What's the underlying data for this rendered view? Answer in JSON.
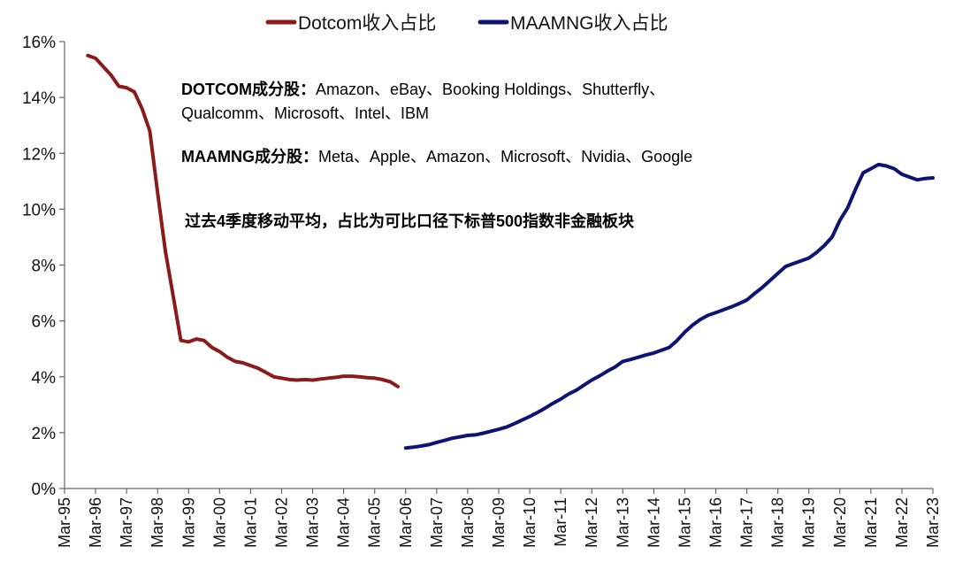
{
  "chart_data": {
    "type": "line",
    "ylim": [
      0,
      16
    ],
    "y_ticks": [
      "0%",
      "2%",
      "4%",
      "6%",
      "8%",
      "10%",
      "12%",
      "14%",
      "16%"
    ],
    "y_tick_values": [
      0,
      2,
      4,
      6,
      8,
      10,
      12,
      14,
      16
    ],
    "x_ticks": [
      "Mar-95",
      "Mar-96",
      "Mar-97",
      "Mar-98",
      "Mar-99",
      "Mar-00",
      "Mar-01",
      "Mar-02",
      "Mar-03",
      "Mar-04",
      "Mar-05",
      "Mar-06",
      "Mar-07",
      "Mar-08",
      "Mar-09",
      "Mar-10",
      "Mar-11",
      "Mar-12",
      "Mar-13",
      "Mar-14",
      "Mar-15",
      "Mar-16",
      "Mar-17",
      "Mar-18",
      "Mar-19",
      "Mar-20",
      "Mar-21",
      "Mar-22",
      "Mar-23"
    ],
    "x_start_year": 1995,
    "legend_position": "top",
    "grid": false,
    "series": [
      {
        "name": "Dotcom收入占比",
        "color": "#8B1A1A",
        "x": [
          1995.75,
          1996.0,
          1996.25,
          1996.5,
          1996.75,
          1997.0,
          1997.25,
          1997.5,
          1997.75,
          1998.0,
          1998.25,
          1998.5,
          1998.75,
          1999.0,
          1999.25,
          1999.5,
          1999.75,
          2000.0,
          2000.25,
          2000.5,
          2000.75,
          2001.0,
          2001.25,
          2001.5,
          2001.75,
          2002.0,
          2002.25,
          2002.5,
          2002.75,
          2003.0,
          2003.25,
          2003.5,
          2003.75,
          2004.0,
          2004.25,
          2004.5,
          2004.75,
          2005.0,
          2005.25,
          2005.5,
          2005.75
        ],
        "y": [
          15.5,
          15.4,
          15.1,
          14.8,
          14.4,
          14.35,
          14.2,
          13.6,
          12.8,
          10.6,
          8.5,
          6.9,
          5.3,
          5.25,
          5.35,
          5.3,
          5.05,
          4.9,
          4.7,
          4.55,
          4.5,
          4.4,
          4.3,
          4.15,
          4.0,
          3.95,
          3.9,
          3.88,
          3.9,
          3.88,
          3.92,
          3.95,
          3.98,
          4.02,
          4.02,
          4.0,
          3.97,
          3.95,
          3.9,
          3.82,
          3.65
        ]
      },
      {
        "name": "MAAMNG收入占比",
        "color": "#0D1470",
        "x": [
          2006.0,
          2006.25,
          2006.5,
          2006.75,
          2007.0,
          2007.25,
          2007.5,
          2007.75,
          2008.0,
          2008.25,
          2008.5,
          2008.75,
          2009.0,
          2009.25,
          2009.5,
          2009.75,
          2010.0,
          2010.25,
          2010.5,
          2010.75,
          2011.0,
          2011.25,
          2011.5,
          2011.75,
          2012.0,
          2012.25,
          2012.5,
          2012.75,
          2013.0,
          2013.25,
          2013.5,
          2013.75,
          2014.0,
          2014.25,
          2014.5,
          2014.75,
          2015.0,
          2015.25,
          2015.5,
          2015.75,
          2016.0,
          2016.25,
          2016.5,
          2016.75,
          2017.0,
          2017.25,
          2017.5,
          2017.75,
          2018.0,
          2018.25,
          2018.5,
          2018.75,
          2019.0,
          2019.25,
          2019.5,
          2019.75,
          2020.0,
          2020.25,
          2020.5,
          2020.75,
          2021.0,
          2021.25,
          2021.5,
          2021.75,
          2022.0,
          2022.25,
          2022.5,
          2022.75,
          2023.0
        ],
        "y": [
          1.45,
          1.48,
          1.52,
          1.57,
          1.65,
          1.72,
          1.8,
          1.85,
          1.9,
          1.92,
          1.98,
          2.05,
          2.12,
          2.2,
          2.32,
          2.45,
          2.58,
          2.72,
          2.88,
          3.05,
          3.2,
          3.38,
          3.52,
          3.7,
          3.88,
          4.03,
          4.2,
          4.35,
          4.55,
          4.62,
          4.7,
          4.78,
          4.85,
          4.95,
          5.05,
          5.3,
          5.6,
          5.85,
          6.05,
          6.2,
          6.3,
          6.4,
          6.5,
          6.62,
          6.75,
          6.98,
          7.2,
          7.45,
          7.7,
          7.95,
          8.05,
          8.15,
          8.25,
          8.45,
          8.7,
          9.0,
          9.6,
          10.05,
          10.7,
          11.3,
          11.45,
          11.6,
          11.55,
          11.45,
          11.25,
          11.15,
          11.05,
          11.1,
          11.12
        ]
      }
    ],
    "annotations": [
      {
        "bold": "DOTCOM成分股：",
        "text": "Amazon、eBay、Booking Holdings、Shutterfly、"
      },
      {
        "bold": "",
        "text": "Qualcomm、Microsoft、Intel、IBM"
      },
      {
        "bold": "MAAMNG成分股：",
        "text": "Meta、Apple、Amazon、Microsoft、Nvidia、Google"
      },
      {
        "bold": "过去4季度移动平均，占比为可比口径下标普500指数非金融板块",
        "text": ""
      }
    ]
  }
}
